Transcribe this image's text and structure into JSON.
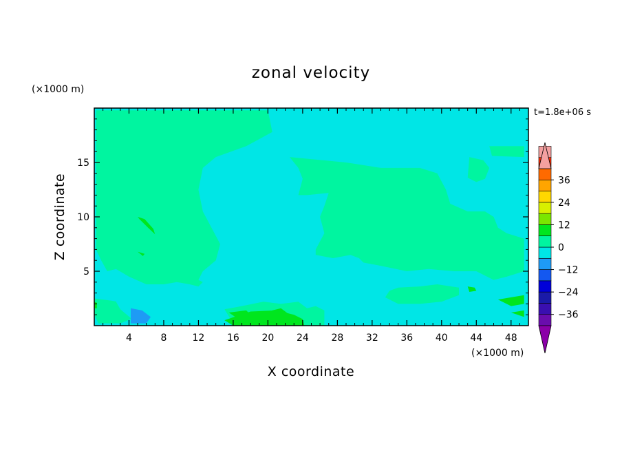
{
  "chart_data": {
    "type": "heatmap",
    "title": "zonal velocity",
    "xlabel": "X coordinate",
    "ylabel": "Z coordinate",
    "x_unit": "(×1000 m)",
    "y_unit": "(×1000 m)",
    "time_label": "t=1.8e+06 s",
    "xlim": [
      0,
      50
    ],
    "ylim": [
      0,
      20
    ],
    "x_ticks": [
      4,
      8,
      12,
      16,
      20,
      24,
      28,
      32,
      36,
      40,
      44,
      48
    ],
    "y_ticks": [
      5,
      10,
      15
    ],
    "colorbar": {
      "min": -42,
      "max": 42,
      "step": 6,
      "tick_values": [
        36,
        24,
        12,
        0,
        -12,
        -24,
        -36
      ],
      "tick_labels": [
        "36",
        "24",
        "12",
        "0",
        "−12",
        "−24",
        "−36"
      ],
      "colors": [
        "#6a0dad",
        "#3a0fb0",
        "#1a1aa8",
        "#0000d8",
        "#1458f0",
        "#1e9bf5",
        "#00e6e6",
        "#00f5a0",
        "#00e61e",
        "#7ae600",
        "#d8f000",
        "#ffd700",
        "#ffa500",
        "#ff6a00",
        "#ff2a00",
        "#f4a0a0"
      ],
      "under_color": "#8b00a8",
      "over_color": "#f4a0a0",
      "extend": "both"
    },
    "regions": [
      {
        "x": [
          0.2,
          4.5,
          10.0,
          14.0,
          20.0,
          20.5,
          17.5,
          14.0,
          12.5,
          12.0,
          12.5,
          13.5,
          14.5,
          14.0,
          12.5,
          12.0,
          12.5,
          12.0,
          11.0,
          9.5,
          8.0,
          6.0,
          4.0,
          2.5,
          1.5,
          0.8,
          0.2
        ],
        "z": [
          19.8,
          19.8,
          19.8,
          19.8,
          19.8,
          17.8,
          16.5,
          15.5,
          14.5,
          12.5,
          10.5,
          9.0,
          7.5,
          6.0,
          5.0,
          4.2,
          4.0,
          3.6,
          3.8,
          4.0,
          3.8,
          3.8,
          4.5,
          5.2,
          5.0,
          6.0,
          7.0
        ],
        "v": 1.5
      },
      {
        "x": [
          22.5,
          29.0,
          33.0,
          37.5,
          39.5,
          40.5,
          41.0,
          43.0,
          45.0,
          46.0,
          46.5,
          47.5,
          49.5,
          49.5,
          47.5,
          46.0,
          44.0,
          41.5,
          38.5,
          36.0,
          33.0,
          31.0,
          30.5,
          29.5,
          27.5,
          25.5,
          25.5,
          26.5,
          26.0,
          26.5,
          27.0,
          24.5,
          23.5,
          24.0,
          23.5,
          22.5
        ],
        "z": [
          15.5,
          15.0,
          14.5,
          14.5,
          14.0,
          12.5,
          11.2,
          10.5,
          10.5,
          10.0,
          9.0,
          8.5,
          8.0,
          5.0,
          4.5,
          4.2,
          5.0,
          5.0,
          5.2,
          5.0,
          5.5,
          5.8,
          6.2,
          6.5,
          6.2,
          6.5,
          7.0,
          8.5,
          10.0,
          11.0,
          12.2,
          12.0,
          12.0,
          13.5,
          14.5,
          15.5
        ],
        "v": 1.5
      },
      {
        "x": [
          43.2,
          44.8,
          45.5,
          45.0,
          44.0,
          43.0,
          43.2
        ],
        "z": [
          15.5,
          15.2,
          14.5,
          13.5,
          13.2,
          13.6,
          15.5
        ],
        "v": 1.5
      },
      {
        "x": [
          45.5,
          49.5,
          49.5,
          45.8,
          45.5
        ],
        "z": [
          16.5,
          16.5,
          15.5,
          15.6,
          16.5
        ],
        "v": 1.5
      },
      {
        "x": [
          35.0,
          37.5,
          39.5,
          42.0,
          42.0,
          40.0,
          37.5,
          35.0,
          33.5,
          34.0,
          35.0
        ],
        "z": [
          3.5,
          3.6,
          3.8,
          3.5,
          2.8,
          2.2,
          2.0,
          2.0,
          2.6,
          3.2,
          3.5
        ],
        "v": 1.5
      },
      {
        "x": [
          0.0,
          2.0,
          4.0,
          5.0,
          4.5,
          3.0,
          0.5,
          0.0
        ],
        "z": [
          2.5,
          2.3,
          2.0,
          1.4,
          0.7,
          0.2,
          0.2,
          1.0
        ],
        "v": 1.5
      },
      {
        "x": [
          15.0,
          17.0,
          19.5,
          21.5,
          23.5,
          24.5,
          25.5,
          26.5,
          26.5,
          23.0,
          18.0,
          16.0,
          15.0
        ],
        "z": [
          1.5,
          1.8,
          2.2,
          2.0,
          2.2,
          1.6,
          1.8,
          1.4,
          0.0,
          0.0,
          0.0,
          0.2,
          1.5
        ],
        "v": 1.5
      },
      {
        "x": [
          15.0,
          16.5,
          18.0,
          21.0,
          23.0,
          24.0,
          24.2,
          22.0,
          18.5,
          16.0,
          15.0
        ],
        "z": [
          0.5,
          0.9,
          1.3,
          1.4,
          1.0,
          0.6,
          0.0,
          0.0,
          0.0,
          0.0,
          0.5
        ],
        "v": 7.5
      },
      {
        "x": [
          19.5,
          20.5,
          21.5,
          22.5,
          23.0,
          22.0,
          20.5,
          19.5
        ],
        "z": [
          0.8,
          1.4,
          1.6,
          1.0,
          0.2,
          0.1,
          0.2,
          0.8
        ],
        "v": 10.0
      },
      {
        "x": [
          5.0,
          5.8,
          6.8,
          7.0,
          6.2,
          5.2,
          5.0
        ],
        "z": [
          10.0,
          9.8,
          8.9,
          8.4,
          9.0,
          9.8,
          10.0
        ],
        "v": 7.5
      },
      {
        "x": [
          5.0,
          5.8,
          5.6,
          5.0
        ],
        "z": [
          6.8,
          6.6,
          6.4,
          6.8
        ],
        "v": 7.5
      },
      {
        "x": [
          43.0,
          43.8,
          44.0,
          43.2,
          43.0
        ],
        "z": [
          3.6,
          3.5,
          3.2,
          3.1,
          3.6
        ],
        "v": 7.5
      },
      {
        "x": [
          46.5,
          48.0,
          49.5,
          49.5,
          48.0,
          46.5
        ],
        "z": [
          2.4,
          2.6,
          2.8,
          2.0,
          1.8,
          2.4
        ],
        "v": 7.5
      },
      {
        "x": [
          48.0,
          49.5,
          49.5,
          48.0
        ],
        "z": [
          1.2,
          1.4,
          0.8,
          1.2
        ],
        "v": 7.5
      },
      {
        "x": [
          15.5,
          17.5,
          18.5,
          17.0,
          15.5
        ],
        "z": [
          1.2,
          1.4,
          0.6,
          0.4,
          1.2
        ],
        "v": 7.5
      },
      {
        "x": [
          0.0,
          0.3,
          0.3,
          0.0
        ],
        "z": [
          2.2,
          2.1,
          1.6,
          1.6
        ],
        "v": 7.5
      },
      {
        "x": [
          15.5,
          18.0,
          21.0,
          23.5,
          23.0,
          20.5,
          18.0,
          15.5
        ],
        "z": [
          9.0,
          9.6,
          9.8,
          8.7,
          7.6,
          7.2,
          7.5,
          9.0
        ],
        "v": -4.5
      },
      {
        "x": [
          22.5,
          23.8,
          24.0,
          22.5,
          22.5
        ],
        "z": [
          4.8,
          4.6,
          4.2,
          4.3,
          4.8
        ],
        "v": -4.5
      },
      {
        "x": [
          2.5,
          4.0,
          5.5,
          8.0,
          10.0,
          11.0,
          9.0,
          7.0,
          4.5,
          3.0,
          2.5
        ],
        "z": [
          2.2,
          2.5,
          2.2,
          2.2,
          2.0,
          1.0,
          0.5,
          0.4,
          0.5,
          1.5,
          2.2
        ],
        "v": -4.5
      },
      {
        "x": [
          30.5,
          32.0,
          31.5,
          30.5,
          30.5
        ],
        "z": [
          3.8,
          3.8,
          2.5,
          2.3,
          3.8
        ],
        "v": -4.5
      },
      {
        "x": [
          40.5,
          43.0,
          43.0,
          40.5
        ],
        "z": [
          0.8,
          0.8,
          0.2,
          0.2
        ],
        "v": -4.5
      },
      {
        "x": [
          4.2,
          5.5,
          6.5,
          6.0,
          4.2
        ],
        "z": [
          1.6,
          1.4,
          0.8,
          0.2,
          0.2
        ],
        "v": -7.5
      }
    ]
  }
}
